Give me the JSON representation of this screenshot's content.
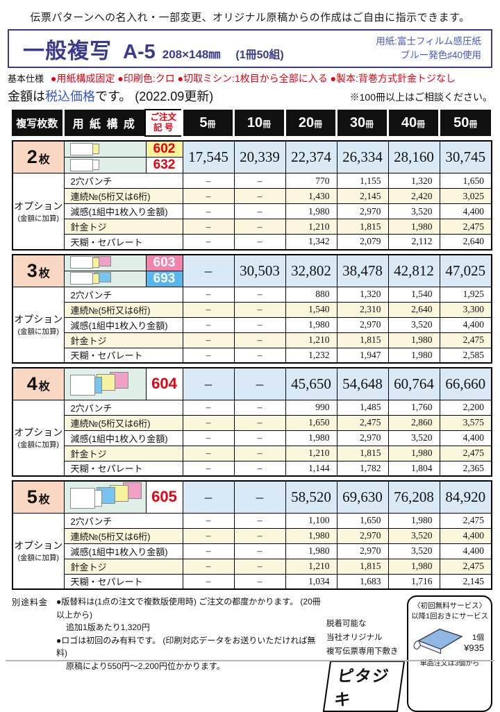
{
  "page": {
    "top_note": "伝票パターンへの名入れ・一部変更、オリジナル原稿からの作成はご自由に指示できます。",
    "title": {
      "product": "一般複写",
      "size_code": "A-5",
      "dimensions": "208×148㎜",
      "set_info": "(1冊50組)",
      "paper_line1": "用紙:富士フィルム感圧紙",
      "paper_line2": "ブルー発色♯40使用"
    },
    "spec": {
      "label": "基本仕様",
      "items": "●用紙構成固定 ●印刷色:クロ ●切取ミシン:1枚目から全部に入る ●製本:背巻方式針金トジなし"
    },
    "price_note": {
      "prefix": "金額は",
      "highlight": "税込価格",
      "suffix": "です。 (2022.09更新)",
      "right": "※100冊以上はご相談ください。"
    }
  },
  "colors": {
    "title_blue": "#3c3a8e",
    "info_blue": "#4a5ac0",
    "accent_red": "#e60012",
    "tax_blue": "#3355cc",
    "header_bg": "#101010",
    "price_bg": "#d9eaf6",
    "count_bg": "#f8d8c2",
    "composition_bg": "#dfeee7",
    "cream_row_bg": "#fbf7dc",
    "code_yellow": "#faf39c",
    "code_pink": "#f084ad",
    "code_blue": "#55b7ec"
  },
  "table": {
    "headers": {
      "col_copies": "複写枚数",
      "col_paper": "用 紙 構 成",
      "col_code_line1": "ご注文",
      "col_code_line2": "記 号",
      "volumes": [
        {
          "count": "5",
          "unit": "冊"
        },
        {
          "count": "10",
          "unit": "冊"
        },
        {
          "count": "20",
          "unit": "冊"
        },
        {
          "count": "30",
          "unit": "冊"
        },
        {
          "count": "40",
          "unit": "冊"
        },
        {
          "count": "50",
          "unit": "冊"
        }
      ]
    },
    "option_side": {
      "label": "オプション",
      "sublabel": "(金額に加算)"
    },
    "sections": [
      {
        "count_num": "2",
        "count_unit": "枚",
        "variants": [
          {
            "code": "602",
            "code_style": "yellow",
            "sheets": [
              "white",
              "yellow"
            ]
          },
          {
            "code": "632",
            "code_style": "",
            "sheets": [
              "white",
              "white"
            ]
          }
        ],
        "prices": [
          "17,545",
          "20,339",
          "22,374",
          "26,334",
          "28,160",
          "30,745"
        ],
        "options": [
          {
            "label": "2穴パンチ",
            "values": [
              "–",
              "–",
              "770",
              "1,155",
              "1,320",
              "1,650"
            ]
          },
          {
            "label": "連続№(5桁又は6桁)",
            "values": [
              "–",
              "–",
              "1,430",
              "2,145",
              "2,420",
              "3,025"
            ]
          },
          {
            "label": "減感(1組中1枚入り金額)",
            "values": [
              "–",
              "–",
              "1,980",
              "2,970",
              "3,520",
              "4,400"
            ]
          },
          {
            "label": "針金トジ",
            "values": [
              "–",
              "–",
              "1,210",
              "1,815",
              "1,980",
              "2,475"
            ]
          },
          {
            "label": "天糊・セパレート",
            "values": [
              "–",
              "–",
              "1,342",
              "2,079",
              "2,112",
              "2,640"
            ]
          }
        ]
      },
      {
        "count_num": "3",
        "count_unit": "枚",
        "variants": [
          {
            "code": "603",
            "code_style": "pink",
            "sheets": [
              "white",
              "yellow",
              "pink"
            ]
          },
          {
            "code": "693",
            "code_style": "blue",
            "sheets": [
              "white",
              "yellow",
              "blue"
            ]
          }
        ],
        "prices": [
          "–",
          "30,503",
          "32,802",
          "38,478",
          "42,812",
          "47,025"
        ],
        "options": [
          {
            "label": "2穴パンチ",
            "values": [
              "–",
              "–",
              "880",
              "1,320",
              "1,540",
              "1,925"
            ]
          },
          {
            "label": "連続№(5桁又は6桁)",
            "values": [
              "–",
              "–",
              "1,540",
              "2,310",
              "2,640",
              "3,300"
            ]
          },
          {
            "label": "減感(1組中1枚入り金額)",
            "values": [
              "–",
              "–",
              "1,980",
              "2,970",
              "3,520",
              "4,400"
            ]
          },
          {
            "label": "針金トジ",
            "values": [
              "–",
              "–",
              "1,210",
              "1,815",
              "1,980",
              "2,475"
            ]
          },
          {
            "label": "天糊・セパレート",
            "values": [
              "–",
              "–",
              "1,232",
              "1,947",
              "1,980",
              "2,585"
            ]
          }
        ]
      },
      {
        "count_num": "4",
        "count_unit": "枚",
        "variants": [
          {
            "code": "604",
            "code_style": "",
            "sheets": [
              "white",
              "blue",
              "yellow",
              "pink"
            ]
          }
        ],
        "prices": [
          "–",
          "–",
          "45,650",
          "54,648",
          "60,764",
          "66,660"
        ],
        "options": [
          {
            "label": "2穴パンチ",
            "values": [
              "–",
              "–",
              "990",
              "1,485",
              "1,760",
              "2,200"
            ]
          },
          {
            "label": "連続№(5桁又は6桁)",
            "values": [
              "–",
              "–",
              "1,650",
              "2,475",
              "2,860",
              "3,575"
            ]
          },
          {
            "label": "減感(1組中1枚入り金額)",
            "values": [
              "–",
              "–",
              "1,980",
              "2,970",
              "3,520",
              "4,400"
            ]
          },
          {
            "label": "針金トジ",
            "values": [
              "–",
              "–",
              "1,210",
              "1,815",
              "1,980",
              "2,475"
            ]
          },
          {
            "label": "天糊・セパレート",
            "values": [
              "–",
              "–",
              "1,144",
              "1,782",
              "1,804",
              "2,365"
            ]
          }
        ]
      },
      {
        "count_num": "5",
        "count_unit": "枚",
        "variants": [
          {
            "code": "605",
            "code_style": "",
            "sheets": [
              "white",
              "white",
              "blue",
              "yellow",
              "pink"
            ]
          }
        ],
        "prices": [
          "–",
          "–",
          "58,520",
          "69,630",
          "76,208",
          "84,920"
        ],
        "options": [
          {
            "label": "2穴パンチ",
            "values": [
              "–",
              "–",
              "1,100",
              "1,650",
              "1,980",
              "2,475"
            ]
          },
          {
            "label": "連続№(5桁又は6桁)",
            "values": [
              "–",
              "–",
              "1,980",
              "2,970",
              "3,520",
              "4,400"
            ]
          },
          {
            "label": "減感(1組中1枚入り金額)",
            "values": [
              "–",
              "–",
              "1,980",
              "2,970",
              "3,520",
              "4,400"
            ]
          },
          {
            "label": "針金トジ",
            "values": [
              "–",
              "–",
              "1,210",
              "1,815",
              "1,980",
              "2,475"
            ]
          },
          {
            "label": "天糊・セパレート",
            "values": [
              "–",
              "–",
              "1,034",
              "1,683",
              "1,716",
              "2,145"
            ]
          }
        ]
      }
    ]
  },
  "footer": {
    "fee_label": "別途料金",
    "notes": [
      "●版替料は(1点の注文で複数版使用時) ご注文の都度かかります。 (20冊以上から)",
      "追加1版あたり1,320円",
      "●ロゴは初回のみ有料です。 (印刷対応データをお送りいただければ無料)",
      "原稿により550円〜2,200円位かかります。"
    ],
    "product_desc": [
      "脱着可能な",
      "当社オリジナル",
      "複写伝票専用下敷き"
    ],
    "product_name": "ピタジキ",
    "service_box": {
      "line1": "〈初回無料サービス〉",
      "line2": "以降1回おきにサービス",
      "unit": "1個",
      "price": "¥935",
      "note": "単品注文は3個から"
    }
  }
}
